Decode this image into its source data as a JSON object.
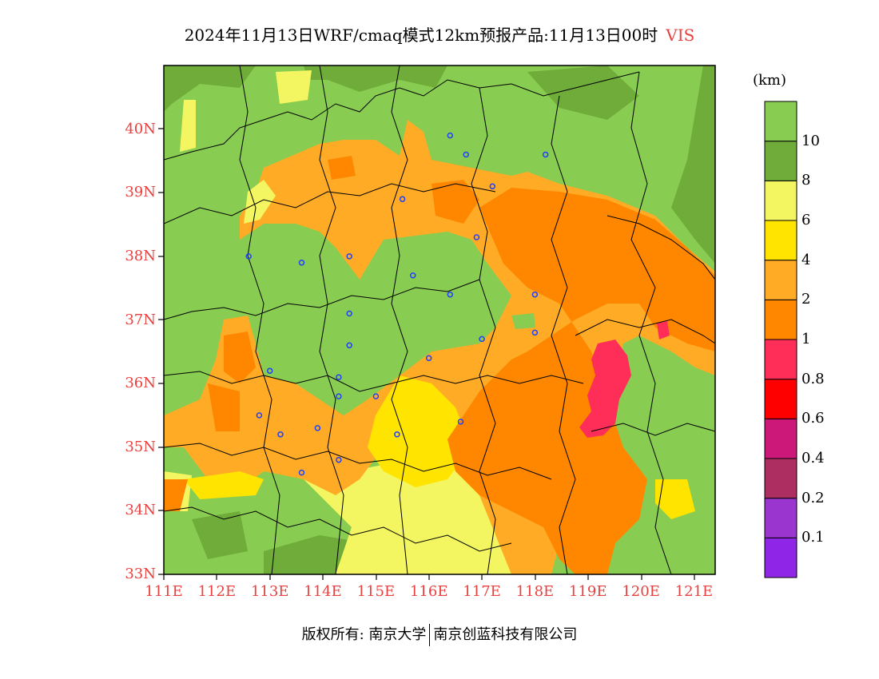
{
  "header": {
    "title": "2024年11月13日WRF/cmaq模式12km预报产品:11月13日00时",
    "variable": "VIS"
  },
  "colorbar": {
    "unit": "(km)",
    "colors": [
      "#8f25e6",
      "#9a35d0",
      "#ad2e60",
      "#cc1878",
      "#ff0000",
      "#ff2e58",
      "#ff8700",
      "#ffab25",
      "#ffe400",
      "#f3f660",
      "#6fac3a",
      "#88cc52"
    ],
    "labels": [
      "0.1",
      "0.2",
      "0.4",
      "0.6",
      "0.8",
      "1",
      "2",
      "4",
      "6",
      "8",
      "10"
    ]
  },
  "axes": {
    "lat_labels": [
      "33N",
      "34N",
      "35N",
      "36N",
      "37N",
      "38N",
      "39N",
      "40N"
    ],
    "lon_labels": [
      "111E",
      "112E",
      "113E",
      "114E",
      "115E",
      "116E",
      "117E",
      "118E",
      "119E",
      "120E",
      "121E"
    ],
    "lat_range": [
      33,
      41
    ],
    "lon_range": [
      111,
      121.4
    ]
  },
  "stations": [
    [
      116.4,
      39.9
    ],
    [
      116.7,
      39.6
    ],
    [
      118.2,
      39.6
    ],
    [
      117.2,
      39.1
    ],
    [
      115.5,
      38.9
    ],
    [
      116.9,
      38.3
    ],
    [
      114.5,
      38.0
    ],
    [
      112.6,
      38.0
    ],
    [
      113.6,
      37.9
    ],
    [
      115.7,
      37.7
    ],
    [
      116.4,
      37.4
    ],
    [
      118.0,
      37.4
    ],
    [
      114.5,
      37.1
    ],
    [
      118.0,
      36.8
    ],
    [
      117.0,
      36.7
    ],
    [
      114.5,
      36.6
    ],
    [
      116.0,
      36.4
    ],
    [
      113.0,
      36.2
    ],
    [
      114.3,
      36.1
    ],
    [
      114.3,
      35.8
    ],
    [
      115.0,
      35.8
    ],
    [
      112.8,
      35.5
    ],
    [
      116.6,
      35.4
    ],
    [
      113.9,
      35.3
    ],
    [
      113.2,
      35.2
    ],
    [
      115.4,
      35.2
    ],
    [
      114.3,
      34.8
    ],
    [
      113.6,
      34.6
    ]
  ],
  "footer": {
    "copyright_prefix": "版权所有:",
    "org1": "南京大学",
    "org2": "南京创蓝科技有限公司"
  }
}
